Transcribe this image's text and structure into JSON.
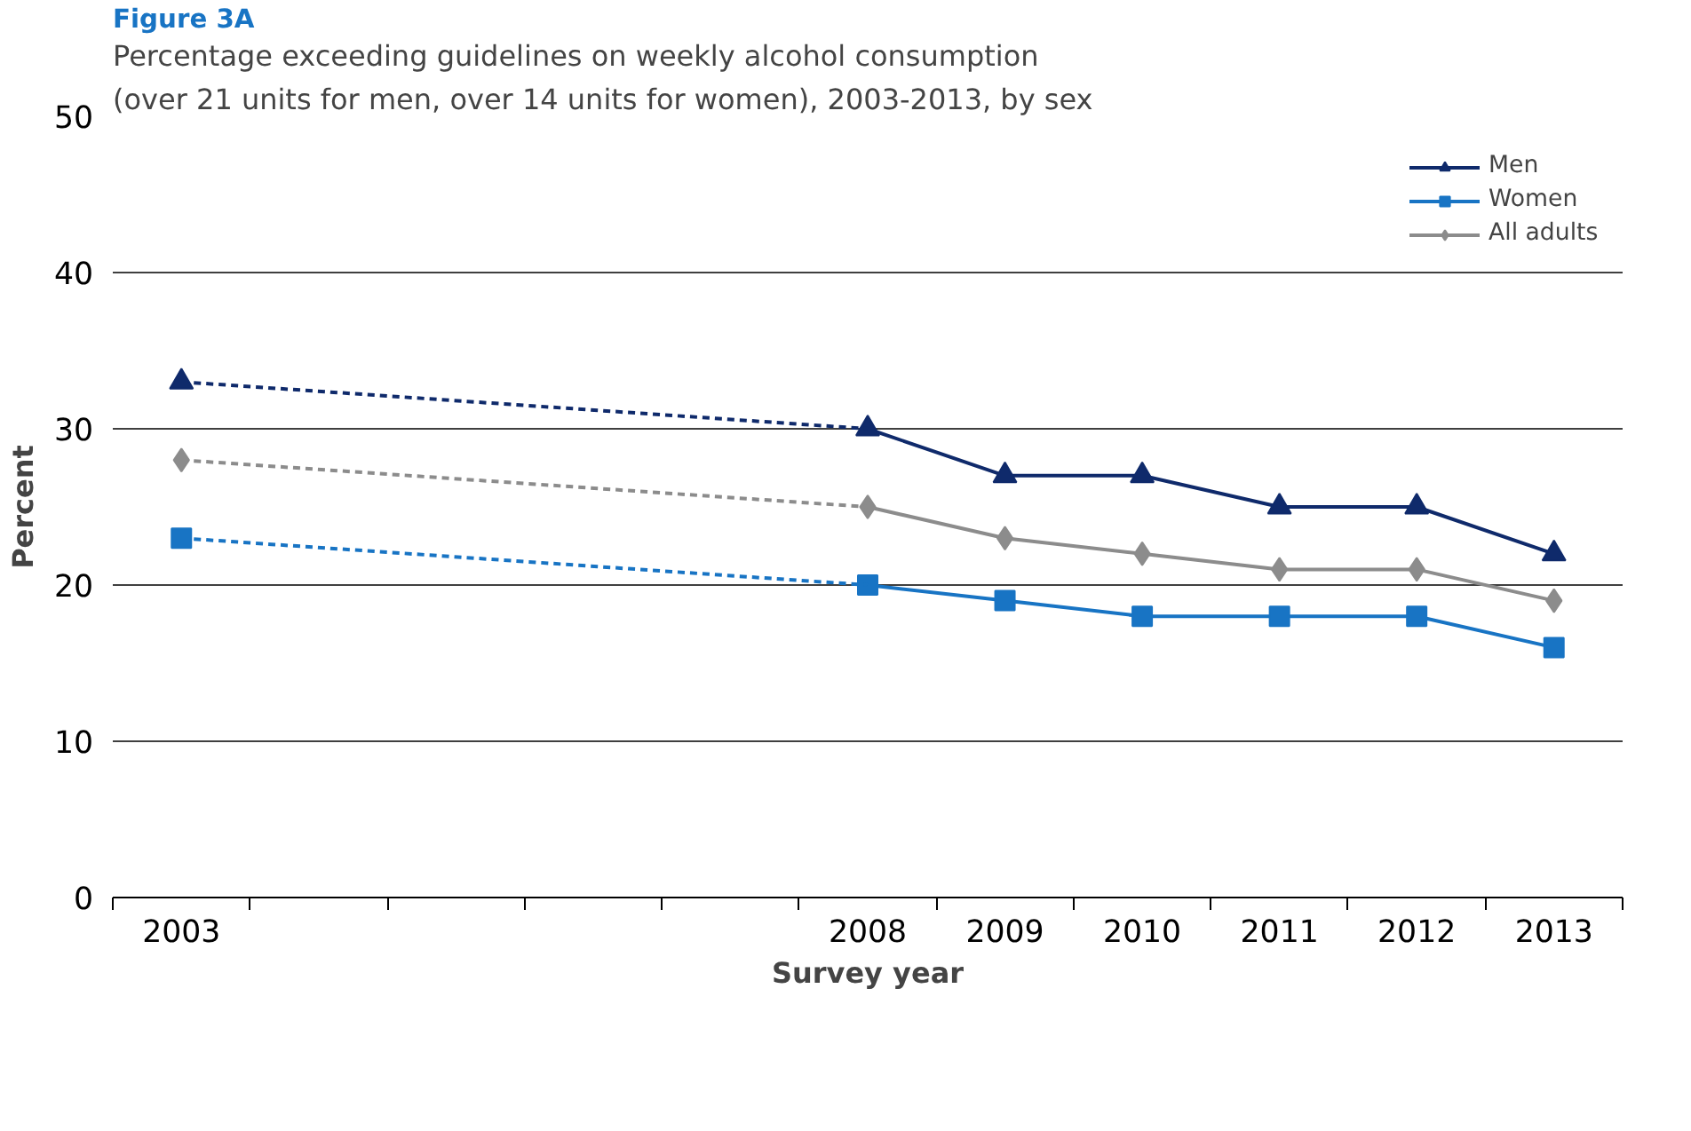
{
  "chart_data": {
    "type": "line",
    "title": "Figure 3A",
    "subtitle": "Percentage exceeding guidelines on weekly alcohol consumption\n(over 21 units for men, over 14 units for women), 2003-2013, by sex",
    "xlabel": "Survey year",
    "ylabel": "Percent",
    "xlim": [
      2002.5,
      2013.5
    ],
    "ylim": [
      0,
      50
    ],
    "yticks": [
      0,
      10,
      20,
      30,
      40,
      50
    ],
    "xticks": [
      {
        "value": 2003,
        "label": "2003"
      },
      {
        "value": 2008,
        "label": "2008"
      },
      {
        "value": 2009,
        "label": "2009"
      },
      {
        "value": 2010,
        "label": "2010"
      },
      {
        "value": 2011,
        "label": "2011"
      },
      {
        "value": 2012,
        "label": "2012"
      },
      {
        "value": 2013,
        "label": "2013"
      },
      {
        "value": 2002.5,
        "label": null
      },
      {
        "value": 2003.5,
        "label": null
      },
      {
        "value": 2004.5,
        "label": null
      },
      {
        "value": 2005.5,
        "label": null
      },
      {
        "value": 2006.5,
        "label": null
      },
      {
        "value": 2007.5,
        "label": null
      },
      {
        "value": 2008.5,
        "label": null
      },
      {
        "value": 2009.5,
        "label": null
      },
      {
        "value": 2010.5,
        "label": null
      },
      {
        "value": 2011.5,
        "label": null
      },
      {
        "value": 2012.5,
        "label": null
      },
      {
        "value": 2013.5,
        "label": null
      }
    ],
    "grid": "y",
    "legend": "top right",
    "series": [
      {
        "name": "Men",
        "color": "#0f2a6b",
        "marker": "triangle",
        "line_style": "solid",
        "x": [
          2008,
          2009,
          2010,
          2011,
          2012,
          2013
        ],
        "values": [
          30,
          27,
          27,
          25,
          25,
          22
        ]
      },
      {
        "name": "Women",
        "color": "#1874c4",
        "marker": "square",
        "line_style": "solid",
        "x": [
          2008,
          2009,
          2010,
          2011,
          2012,
          2013
        ],
        "values": [
          20,
          19,
          18,
          18,
          18,
          16
        ]
      },
      {
        "name": "All adults",
        "color": "#8c8c8c",
        "marker": "diamond",
        "line_style": "solid",
        "x": [
          2008,
          2009,
          2010,
          2011,
          2012,
          2013
        ],
        "values": [
          25,
          23,
          22,
          21,
          21,
          19
        ]
      },
      {
        "color": "#0f2a6b",
        "marker": "none",
        "line_style": "dashed",
        "x": [
          2003,
          2008
        ],
        "values": [
          33,
          30
        ]
      },
      {
        "color": "#1874c4",
        "marker": "none",
        "line_style": "dashed",
        "x": [
          2003,
          2008
        ],
        "values": [
          23,
          20
        ]
      },
      {
        "color": "#8c8c8c",
        "marker": "none",
        "line_style": "dashed",
        "x": [
          2003,
          2008
        ],
        "values": [
          28,
          25
        ]
      },
      {
        "type": "scatter",
        "color": "#0f2a6b",
        "marker": "triangle",
        "x": [
          2003
        ],
        "values": [
          33
        ]
      },
      {
        "type": "scatter",
        "color": "#1874c4",
        "marker": "square",
        "x": [
          2003
        ],
        "values": [
          23
        ]
      },
      {
        "type": "scatter",
        "color": "#8c8c8c",
        "marker": "diamond",
        "x": [
          2003
        ],
        "values": [
          28
        ]
      }
    ]
  }
}
